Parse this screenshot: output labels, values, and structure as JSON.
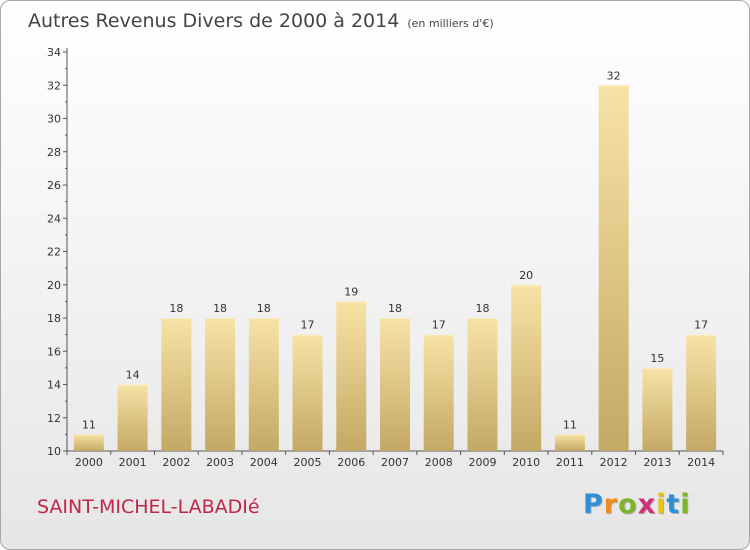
{
  "title": "Autres Revenus Divers de 2000 à 2014",
  "subtitle": "(en milliers d'€)",
  "commune": "SAINT-MICHEL-LABADIé",
  "logo": {
    "letters": [
      "P",
      "r",
      "o",
      "x",
      "i",
      "t",
      "i"
    ],
    "colors": [
      "#2f8fd6",
      "#f08a1c",
      "#7ab52b",
      "#d12f7c",
      "#e6c21a",
      "#2f8fd6",
      "#7ab52b"
    ]
  },
  "colors": {
    "bar_top": "#f7e3a6",
    "bar_bottom": "#c4a865",
    "bar_edge": "#fbeec4",
    "axis": "#555555",
    "text": "#333333"
  },
  "chart_data": {
    "type": "bar",
    "categories": [
      "2000",
      "2001",
      "2002",
      "2003",
      "2004",
      "2005",
      "2006",
      "2007",
      "2008",
      "2009",
      "2010",
      "2011",
      "2012",
      "2013",
      "2014"
    ],
    "values": [
      11,
      14,
      18,
      18,
      18,
      17,
      19,
      18,
      17,
      18,
      20,
      11,
      32,
      15,
      17
    ],
    "title": "Autres Revenus Divers de 2000 à 2014",
    "xlabel": "",
    "ylabel": "",
    "ylim": [
      10,
      34
    ],
    "yticks": [
      10,
      12,
      14,
      16,
      18,
      20,
      22,
      24,
      26,
      28,
      30,
      32,
      34
    ],
    "grid": false,
    "data_labels": true
  }
}
